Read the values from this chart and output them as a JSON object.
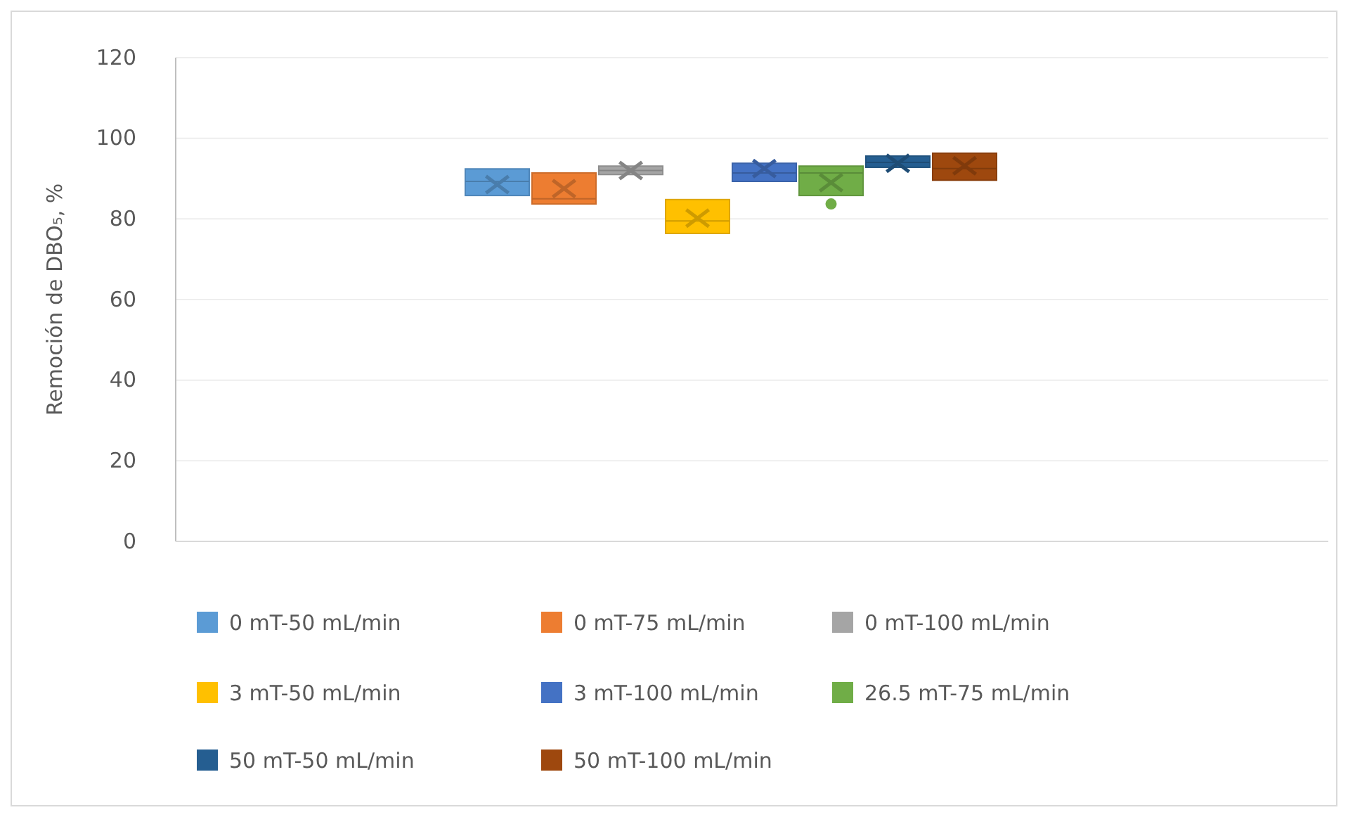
{
  "chart_data": {
    "type": "box",
    "ylabel": "Remoción de DBO₅, %",
    "categories": [
      null
    ],
    "ylim": [
      0,
      120
    ],
    "yticks": [
      0,
      20,
      40,
      60,
      80,
      100,
      120
    ],
    "grid": "y",
    "legend": "bottom",
    "marker": "cross",
    "series": [
      {
        "name": "0 mT-50 mL/min",
        "color": "#5b9bd5",
        "boxes": [
          {
            "low": 85.8,
            "q1": 85.8,
            "median": 89.3,
            "q3": 92.4,
            "high": 92.4,
            "mean": 88.5
          }
        ]
      },
      {
        "name": "0 mT-75 mL/min",
        "color": "#ed7d31",
        "boxes": [
          {
            "low": 83.7,
            "q1": 83.7,
            "median": 85,
            "q3": 91.4,
            "high": 91.4,
            "mean": 87.5
          }
        ]
      },
      {
        "name": "0 mT-100 mL/min",
        "color": "#a5a5a5",
        "boxes": [
          {
            "low": 91,
            "q1": 91,
            "median": 92,
            "q3": 93.1,
            "high": 93.1,
            "mean": 92
          }
        ]
      },
      {
        "name": "3 mT-50 mL/min",
        "color": "#ffc000",
        "boxes": [
          {
            "low": 76.4,
            "q1": 76.4,
            "median": 79.5,
            "q3": 84.8,
            "high": 84.8,
            "mean": 80.2
          }
        ]
      },
      {
        "name": "3 mT-100 mL/min",
        "color": "#4472c4",
        "boxes": [
          {
            "low": 89.3,
            "q1": 89.3,
            "median": 91.4,
            "q3": 93.8,
            "high": 93.8,
            "mean": 92.5
          }
        ]
      },
      {
        "name": "26.5 mT-75 mL/min",
        "color": "#70ad47",
        "boxes": [
          {
            "low": 85.8,
            "q1": 85.8,
            "median": 91.4,
            "q3": 93.1,
            "high": 93.1,
            "mean": 89,
            "outliers": [
              83.7
            ]
          }
        ]
      },
      {
        "name": "50 mT-50 mL/min",
        "color": "#255e91",
        "boxes": [
          {
            "low": 92.8,
            "q1": 92.8,
            "median": 94,
            "q3": 95.6,
            "high": 95.6,
            "mean": 93.8
          }
        ]
      },
      {
        "name": "50 mT-100 mL/min",
        "color": "#9e480e",
        "boxes": [
          {
            "low": 89.6,
            "q1": 89.6,
            "median": 92.5,
            "q3": 96.3,
            "high": 96.3,
            "mean": 93.2
          }
        ]
      }
    ]
  }
}
